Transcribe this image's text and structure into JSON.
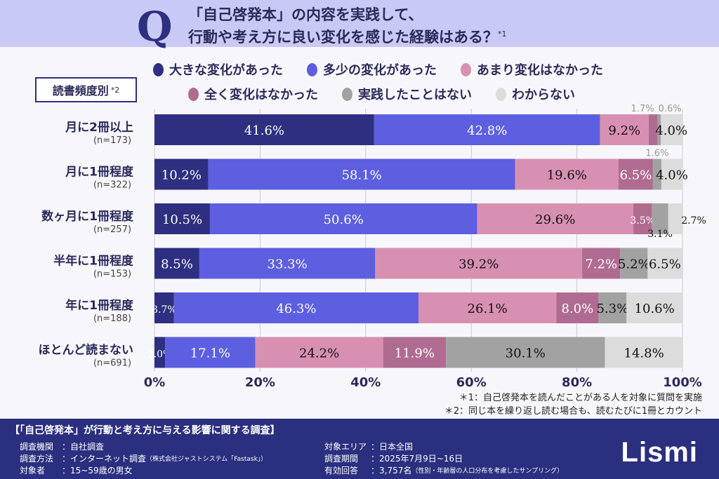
{
  "header": {
    "q": "Q",
    "title_line1": "「自己啓発本」の内容を実践して、",
    "title_line2": "行動や考え方に良い変化を感じた経験はある？",
    "title_note": "*1"
  },
  "group_label": "読書頻度別",
  "group_note": "*2",
  "chart_data": {
    "type": "bar",
    "orientation": "horizontal-stacked-100",
    "categories": [
      "月に2冊以上",
      "月に1冊程度",
      "数ヶ月に1冊程度",
      "半年に1冊程度",
      "年に1冊程度",
      "ほとんど読まない"
    ],
    "n_labels": [
      "(n=173)",
      "(n=322)",
      "(n=257)",
      "(n=153)",
      "(n=188)",
      "(n=691)"
    ],
    "series": [
      {
        "name": "大きな変化があった",
        "color": "#2e2f80",
        "label_color": "#ffffff",
        "values": [
          41.6,
          10.2,
          10.5,
          8.5,
          3.7,
          2.0
        ]
      },
      {
        "name": "多少の変化があった",
        "color": "#5d5fe0",
        "label_color": "#ffffff",
        "values": [
          42.8,
          58.1,
          50.6,
          33.3,
          46.3,
          17.1
        ]
      },
      {
        "name": "あまり変化はなかった",
        "color": "#d890b2",
        "label_color": "#111111",
        "values": [
          9.2,
          19.6,
          29.6,
          39.2,
          26.1,
          24.2
        ]
      },
      {
        "name": "全く変化はなかった",
        "color": "#b06c90",
        "label_color": "#ffffff",
        "values": [
          1.7,
          6.5,
          3.5,
          7.2,
          8.0,
          11.9
        ]
      },
      {
        "name": "実践したことはない",
        "color": "#a2a2a2",
        "label_color": "#111111",
        "values": [
          0.6,
          1.6,
          3.1,
          5.2,
          5.3,
          30.1
        ]
      },
      {
        "name": "わからない",
        "color": "#dcdcdc",
        "label_color": "#111111",
        "values": [
          4.0,
          4.0,
          2.7,
          6.5,
          10.6,
          14.8
        ]
      }
    ],
    "xlim": [
      0,
      100
    ],
    "xticks": [
      "0%",
      "20%",
      "40%",
      "60%",
      "80%",
      "100%"
    ],
    "grid": true,
    "legend": "top"
  },
  "notes": [
    "＊1：自己啓発本を読んだことがある人を対象に質問を実施",
    "＊2：同じ本を繰り返し読む場合も、読むたびに1冊とカウント"
  ],
  "footer": {
    "title": "【「自己啓発本」が行動と考え方に与える影響に関する調査】",
    "rows": [
      {
        "k": "調査機関",
        "v": "：自社調査",
        "s": ""
      },
      {
        "k": "調査方法",
        "v": "：インターネット調査",
        "s": "（株式会社ジャストシステム「Fastask」）"
      },
      {
        "k": "対象者",
        "v": "：15~59歳の男女",
        "s": ""
      },
      {
        "k": "対象エリア",
        "v": "：日本全国",
        "s": ""
      },
      {
        "k": "調査期間",
        "v": "：2025年7月9日~16日",
        "s": ""
      },
      {
        "k": "有効回答",
        "v": "：3,757名",
        "s": "（性別・年齢層の人口分布を考慮したサンプリング）"
      }
    ],
    "logo": "Lismi"
  }
}
